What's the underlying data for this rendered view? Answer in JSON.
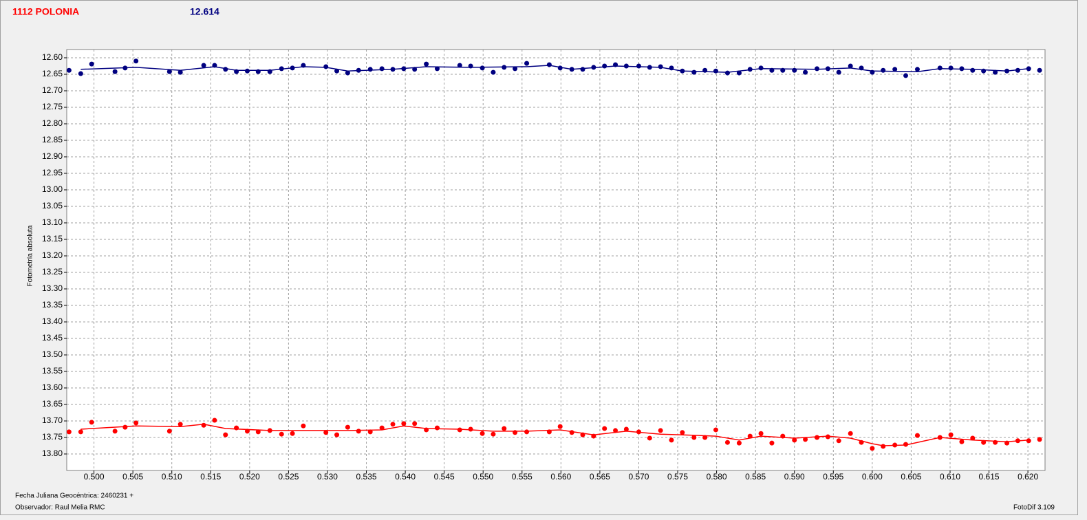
{
  "chart_data": {
    "type": "scatter",
    "title": "1112 POLONIA",
    "title_color": "#ff0000",
    "subtitle": "12.614",
    "subtitle_color": "#000080",
    "y_label": "Fotometría absoluta",
    "x_note": "Fecha Juliana Geocéntrica: 2460231 +",
    "observer": "Observador: Raul Melia RMC",
    "software": "FotoDif 3.109",
    "grid": true,
    "xlim": [
      0.4965,
      0.6222
    ],
    "ylim": [
      13.85,
      12.575
    ],
    "xticks": [
      {
        "value": 0.5,
        "label": "0.500"
      },
      {
        "value": 0.505,
        "label": "0.505"
      },
      {
        "value": 0.51,
        "label": "0.510"
      },
      {
        "value": 0.515,
        "label": "0.515"
      },
      {
        "value": 0.52,
        "label": "0.520"
      },
      {
        "value": 0.525,
        "label": "0.525"
      },
      {
        "value": 0.53,
        "label": "0.530"
      },
      {
        "value": 0.535,
        "label": "0.535"
      },
      {
        "value": 0.54,
        "label": "0.540"
      },
      {
        "value": 0.545,
        "label": "0.545"
      },
      {
        "value": 0.55,
        "label": "0.550"
      },
      {
        "value": 0.555,
        "label": "0.555"
      },
      {
        "value": 0.56,
        "label": "0.560"
      },
      {
        "value": 0.565,
        "label": "0.565"
      },
      {
        "value": 0.57,
        "label": "0.570"
      },
      {
        "value": 0.575,
        "label": "0.575"
      },
      {
        "value": 0.58,
        "label": "0.580"
      },
      {
        "value": 0.585,
        "label": "0.585"
      },
      {
        "value": 0.59,
        "label": "0.590"
      },
      {
        "value": 0.595,
        "label": "0.595"
      },
      {
        "value": 0.6,
        "label": "0.600"
      },
      {
        "value": 0.605,
        "label": "0.605"
      },
      {
        "value": 0.61,
        "label": "0.610"
      },
      {
        "value": 0.615,
        "label": "0.615"
      },
      {
        "value": 0.62,
        "label": "0.620"
      }
    ],
    "yticks": [
      {
        "value": 12.6,
        "label": "12.60"
      },
      {
        "value": 12.65,
        "label": "12.65"
      },
      {
        "value": 12.7,
        "label": "12.70"
      },
      {
        "value": 12.75,
        "label": "12.75"
      },
      {
        "value": 12.8,
        "label": "12.80"
      },
      {
        "value": 12.85,
        "label": "12.85"
      },
      {
        "value": 12.9,
        "label": "12.90"
      },
      {
        "value": 12.95,
        "label": "12.95"
      },
      {
        "value": 13.0,
        "label": "13.00"
      },
      {
        "value": 13.05,
        "label": "13.05"
      },
      {
        "value": 13.1,
        "label": "13.10"
      },
      {
        "value": 13.15,
        "label": "13.15"
      },
      {
        "value": 13.2,
        "label": "13.20"
      },
      {
        "value": 13.25,
        "label": "13.25"
      },
      {
        "value": 13.3,
        "label": "13.30"
      },
      {
        "value": 13.35,
        "label": "13.35"
      },
      {
        "value": 13.4,
        "label": "13.40"
      },
      {
        "value": 13.45,
        "label": "13.45"
      },
      {
        "value": 13.5,
        "label": "13.50"
      },
      {
        "value": 13.55,
        "label": "13.55"
      },
      {
        "value": 13.6,
        "label": "13.60"
      },
      {
        "value": 13.65,
        "label": "13.65"
      },
      {
        "value": 13.7,
        "label": "13.70"
      },
      {
        "value": 13.75,
        "label": "13.75"
      },
      {
        "value": 13.8,
        "label": "13.80"
      }
    ],
    "x": [
      0.4968,
      0.4983,
      0.4997,
      0.5027,
      0.504,
      0.5054,
      0.5097,
      0.5111,
      0.5141,
      0.5155,
      0.5169,
      0.5183,
      0.5197,
      0.5211,
      0.5226,
      0.5241,
      0.5255,
      0.5269,
      0.5298,
      0.5312,
      0.5326,
      0.534,
      0.5355,
      0.537,
      0.5384,
      0.5398,
      0.5412,
      0.5427,
      0.5441,
      0.547,
      0.5484,
      0.5499,
      0.5513,
      0.5527,
      0.5541,
      0.5556,
      0.5585,
      0.5599,
      0.5614,
      0.5628,
      0.5642,
      0.5656,
      0.567,
      0.5684,
      0.57,
      0.5714,
      0.5728,
      0.5742,
      0.5756,
      0.5771,
      0.5785,
      0.5799,
      0.5814,
      0.5829,
      0.5843,
      0.5857,
      0.5871,
      0.5885,
      0.59,
      0.5914,
      0.5929,
      0.5943,
      0.5957,
      0.5972,
      0.5986,
      0.6,
      0.6014,
      0.6029,
      0.6043,
      0.6058,
      0.6087,
      0.6101,
      0.6115,
      0.6129,
      0.6143,
      0.6158,
      0.6173,
      0.6187,
      0.6201,
      0.6215
    ],
    "series": [
      {
        "color": "#000080",
        "values": [
          12.638,
          12.648,
          12.619,
          12.642,
          12.631,
          12.61,
          12.642,
          12.644,
          12.623,
          12.623,
          12.635,
          12.642,
          12.64,
          12.642,
          12.642,
          12.633,
          12.631,
          12.623,
          12.627,
          12.64,
          12.646,
          12.638,
          12.635,
          12.633,
          12.635,
          12.633,
          12.635,
          12.619,
          12.633,
          12.623,
          12.625,
          12.631,
          12.644,
          12.629,
          12.633,
          12.617,
          12.621,
          12.631,
          12.635,
          12.635,
          12.629,
          12.625,
          12.621,
          12.625,
          12.625,
          12.629,
          12.627,
          12.631,
          12.64,
          12.644,
          12.638,
          12.64,
          12.646,
          12.646,
          12.635,
          12.631,
          12.638,
          12.638,
          12.638,
          12.644,
          12.633,
          12.633,
          12.644,
          12.625,
          12.631,
          12.644,
          12.638,
          12.635,
          12.654,
          12.635,
          12.631,
          12.631,
          12.633,
          12.638,
          12.64,
          12.644,
          12.64,
          12.638,
          12.633,
          12.638
        ],
        "trend_x": [
          0.4983,
          0.5054,
          0.5111,
          0.5155,
          0.5183,
          0.5226,
          0.5269,
          0.5298,
          0.5326,
          0.5384,
          0.5427,
          0.5484,
          0.5556,
          0.5585,
          0.5614,
          0.567,
          0.5728,
          0.5756,
          0.5814,
          0.5857,
          0.5929,
          0.5972,
          0.6,
          0.6058,
          0.6087,
          0.6129,
          0.6173,
          0.6201
        ],
        "trend": [
          12.635,
          12.629,
          12.638,
          12.627,
          12.638,
          12.638,
          12.627,
          12.629,
          12.64,
          12.635,
          12.627,
          12.629,
          12.627,
          12.623,
          12.635,
          12.625,
          12.629,
          12.64,
          12.644,
          12.633,
          12.635,
          12.631,
          12.64,
          12.642,
          12.633,
          12.635,
          12.64,
          12.633
        ]
      },
      {
        "color": "#ff0000",
        "values": [
          13.733,
          13.733,
          13.704,
          13.731,
          13.719,
          13.706,
          13.731,
          13.71,
          13.713,
          13.698,
          13.742,
          13.721,
          13.731,
          13.733,
          13.729,
          13.74,
          13.738,
          13.715,
          13.735,
          13.742,
          13.719,
          13.731,
          13.733,
          13.721,
          13.71,
          13.708,
          13.708,
          13.727,
          13.721,
          13.727,
          13.725,
          13.738,
          13.74,
          13.723,
          13.735,
          13.733,
          13.733,
          13.717,
          13.735,
          13.742,
          13.746,
          13.723,
          13.729,
          13.725,
          13.733,
          13.752,
          13.729,
          13.758,
          13.735,
          13.75,
          13.75,
          13.727,
          13.765,
          13.767,
          13.746,
          13.738,
          13.767,
          13.746,
          13.758,
          13.756,
          13.75,
          13.748,
          13.76,
          13.738,
          13.765,
          13.783,
          13.777,
          13.773,
          13.771,
          13.744,
          13.75,
          13.742,
          13.763,
          13.752,
          13.765,
          13.765,
          13.767,
          13.76,
          13.76,
          13.756
        ],
        "trend_x": [
          0.4983,
          0.5054,
          0.5111,
          0.5141,
          0.5169,
          0.5226,
          0.5269,
          0.5326,
          0.537,
          0.5398,
          0.5427,
          0.547,
          0.5513,
          0.5556,
          0.5599,
          0.5642,
          0.5684,
          0.5728,
          0.5756,
          0.5799,
          0.5829,
          0.5857,
          0.59,
          0.5943,
          0.5972,
          0.6,
          0.6014,
          0.6043,
          0.6087,
          0.6129,
          0.6173,
          0.6201
        ],
        "trend": [
          13.725,
          13.715,
          13.717,
          13.71,
          13.723,
          13.729,
          13.729,
          13.729,
          13.727,
          13.715,
          13.723,
          13.725,
          13.731,
          13.731,
          13.727,
          13.742,
          13.731,
          13.74,
          13.742,
          13.746,
          13.758,
          13.746,
          13.752,
          13.746,
          13.752,
          13.769,
          13.775,
          13.773,
          13.75,
          13.758,
          13.763,
          13.758
        ]
      }
    ]
  }
}
